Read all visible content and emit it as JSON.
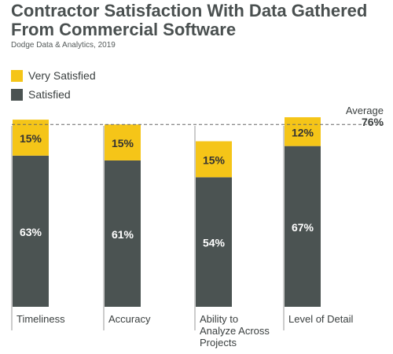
{
  "title": "Contractor Satisfaction With Data Gathered From Commercial Software",
  "subtitle": "Dodge Data & Analytics, 2019",
  "legend": {
    "very_satisfied": "Very Satisfied",
    "satisfied": "Satisfied"
  },
  "colors": {
    "very_satisfied": "#f5c518",
    "satisfied": "#4b5352",
    "reference_line": "#666666"
  },
  "average": {
    "label": "Average",
    "value_label": "76%",
    "value": 76
  },
  "chart_data": {
    "type": "bar",
    "stacked": true,
    "categories": [
      "Timeliness",
      "Accuracy",
      "Ability to Analyze Across Projects",
      "Level of Detail"
    ],
    "category_lines": [
      [
        "Timeliness"
      ],
      [
        "Accuracy"
      ],
      [
        "Ability to",
        "Analyze Across",
        "Projects"
      ],
      [
        "Level of Detail"
      ]
    ],
    "series": [
      {
        "name": "Satisfied",
        "values": [
          63,
          61,
          54,
          67
        ],
        "labels": [
          "63%",
          "61%",
          "54%",
          "67%"
        ]
      },
      {
        "name": "Very Satisfied",
        "values": [
          15,
          15,
          15,
          12
        ],
        "labels": [
          "15%",
          "15%",
          "15%",
          "12%"
        ]
      }
    ],
    "title": "Contractor Satisfaction With Data Gathered From Commercial Software",
    "xlabel": "",
    "ylabel": "",
    "ylim": [
      0,
      80
    ],
    "grid": false,
    "legend_position": "top-left",
    "reference_line": {
      "label": "Average",
      "value": 76
    }
  }
}
